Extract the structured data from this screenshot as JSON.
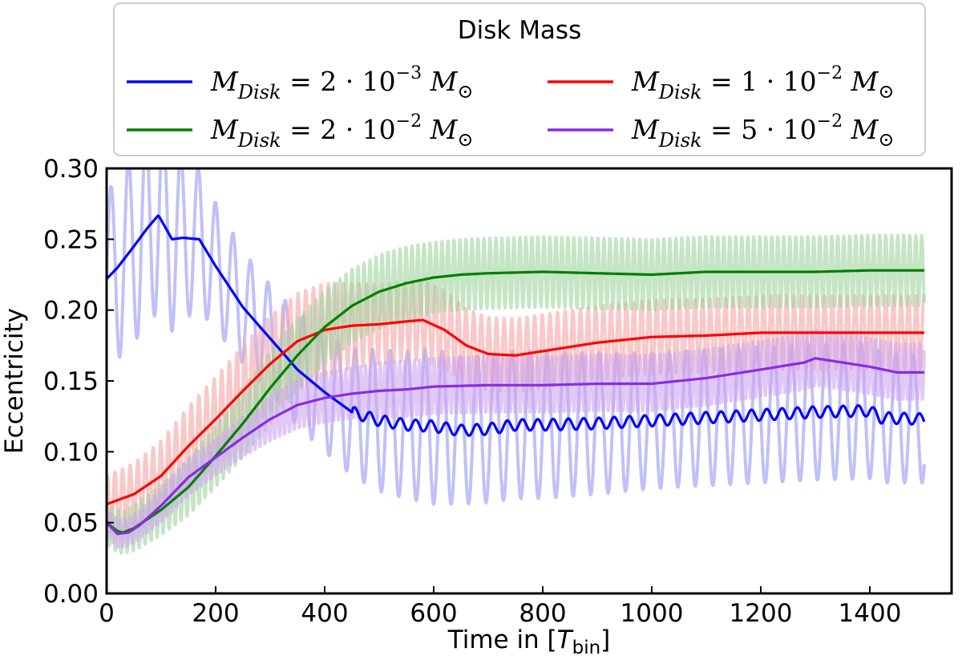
{
  "chart_data": {
    "type": "line",
    "title": "",
    "xlabel_prefix": "Time in [",
    "xlabel_var": "T",
    "xlabel_sub": "bin",
    "xlabel_suffix": "]",
    "ylabel": "Eccentricity",
    "xlim": [
      0,
      1550
    ],
    "ylim": [
      0,
      0.3
    ],
    "xticks": [
      0,
      200,
      400,
      600,
      800,
      1000,
      1200,
      1400
    ],
    "xtick_labels": [
      "0",
      "200",
      "400",
      "600",
      "800",
      "1000",
      "1200",
      "1400"
    ],
    "yticks": [
      0.0,
      0.05,
      0.1,
      0.15,
      0.2,
      0.25,
      0.3
    ],
    "ytick_labels": [
      "0.00",
      "0.05",
      "0.10",
      "0.15",
      "0.20",
      "0.25",
      "0.30"
    ],
    "grid": false,
    "legend": {
      "title": "Disk Mass",
      "placement": "top-center",
      "columns": 2
    },
    "series": [
      {
        "name": "M_Disk = 2·10^-3 M_sun",
        "legend_var": "M",
        "legend_sub": "Disk",
        "legend_coef": "= 2 · 10",
        "legend_exp": "−3",
        "legend_unit": "M",
        "legend_unit_sub": "⊙",
        "color": "#0000ff",
        "band_color": "#8d8df5",
        "band_opacity": 0.55,
        "osc_period": 32,
        "x": [
          0,
          20,
          50,
          75,
          95,
          120,
          140,
          170,
          200,
          250,
          300,
          350,
          400,
          450,
          500,
          550,
          600,
          650,
          700,
          750,
          800,
          900,
          1000,
          1100,
          1200,
          1300,
          1400,
          1420,
          1500
        ],
        "y": [
          0.222,
          0.23,
          0.245,
          0.258,
          0.267,
          0.25,
          0.251,
          0.25,
          0.231,
          0.202,
          0.18,
          0.158,
          0.142,
          0.128,
          0.122,
          0.119,
          0.118,
          0.115,
          0.116,
          0.119,
          0.119,
          0.12,
          0.122,
          0.124,
          0.126,
          0.128,
          0.129,
          0.124,
          0.123
        ],
        "band_half": [
          0.06,
          0.065,
          0.068,
          0.068,
          0.068,
          0.065,
          0.058,
          0.05,
          0.045,
          0.04,
          0.038,
          0.04,
          0.042,
          0.045,
          0.05,
          0.052,
          0.055,
          0.052,
          0.052,
          0.052,
          0.052,
          0.05,
          0.048,
          0.048,
          0.048,
          0.048,
          0.048,
          0.046,
          0.045
        ]
      },
      {
        "name": "M_Disk = 1·10^-2 M_sun",
        "legend_var": "M",
        "legend_sub": "Disk",
        "legend_coef": "= 1 · 10",
        "legend_exp": "−2",
        "legend_unit": "M",
        "legend_unit_sub": "⊙",
        "color": "#ff0000",
        "band_color": "#f7a3a3",
        "band_opacity": 0.6,
        "osc_period": 14,
        "x": [
          0,
          50,
          100,
          150,
          200,
          250,
          300,
          350,
          400,
          450,
          500,
          550,
          580,
          620,
          660,
          700,
          750,
          800,
          900,
          1000,
          1100,
          1200,
          1300,
          1400,
          1500
        ],
        "y": [
          0.063,
          0.07,
          0.083,
          0.104,
          0.123,
          0.143,
          0.162,
          0.178,
          0.186,
          0.189,
          0.19,
          0.192,
          0.193,
          0.186,
          0.175,
          0.169,
          0.168,
          0.171,
          0.177,
          0.181,
          0.182,
          0.184,
          0.184,
          0.184,
          0.184
        ],
        "band_half": [
          0.02,
          0.022,
          0.025,
          0.028,
          0.03,
          0.032,
          0.034,
          0.034,
          0.033,
          0.03,
          0.028,
          0.028,
          0.028,
          0.028,
          0.026,
          0.026,
          0.026,
          0.026,
          0.026,
          0.026,
          0.026,
          0.026,
          0.026,
          0.026,
          0.026
        ]
      },
      {
        "name": "M_Disk = 2·10^-2 M_sun",
        "legend_var": "M",
        "legend_sub": "Disk",
        "legend_coef": "= 2 · 10",
        "legend_exp": "−2",
        "legend_unit": "M",
        "legend_unit_sub": "⊙",
        "color": "#008000",
        "band_color": "#9fd49f",
        "band_opacity": 0.6,
        "osc_period": 11,
        "x": [
          0,
          20,
          30,
          50,
          100,
          150,
          200,
          250,
          300,
          350,
          400,
          450,
          500,
          550,
          600,
          650,
          700,
          800,
          900,
          1000,
          1100,
          1200,
          1300,
          1400,
          1500
        ],
        "y": [
          0.05,
          0.044,
          0.043,
          0.046,
          0.059,
          0.075,
          0.097,
          0.12,
          0.145,
          0.168,
          0.188,
          0.203,
          0.213,
          0.219,
          0.223,
          0.225,
          0.226,
          0.227,
          0.226,
          0.225,
          0.227,
          0.227,
          0.227,
          0.228,
          0.228
        ],
        "band_half": [
          0.015,
          0.015,
          0.015,
          0.016,
          0.018,
          0.02,
          0.022,
          0.024,
          0.026,
          0.026,
          0.026,
          0.026,
          0.026,
          0.026,
          0.025,
          0.025,
          0.025,
          0.025,
          0.025,
          0.025,
          0.025,
          0.025,
          0.025,
          0.025,
          0.025
        ]
      },
      {
        "name": "M_Disk = 5·10^-2 M_sun",
        "legend_var": "M",
        "legend_sub": "Disk",
        "legend_coef": "= 5 · 10",
        "legend_exp": "−2",
        "legend_unit": "M",
        "legend_unit_sub": "⊙",
        "color": "#8a2be2",
        "band_color": "#cfa5ef",
        "band_opacity": 0.6,
        "osc_period": 9,
        "x": [
          0,
          20,
          40,
          60,
          100,
          150,
          200,
          250,
          300,
          350,
          400,
          450,
          500,
          550,
          600,
          700,
          800,
          900,
          1000,
          1100,
          1200,
          1280,
          1300,
          1350,
          1400,
          1450,
          1500
        ],
        "y": [
          0.05,
          0.042,
          0.043,
          0.048,
          0.062,
          0.082,
          0.096,
          0.11,
          0.123,
          0.133,
          0.138,
          0.141,
          0.143,
          0.144,
          0.146,
          0.147,
          0.147,
          0.148,
          0.148,
          0.152,
          0.158,
          0.163,
          0.166,
          0.163,
          0.16,
          0.156,
          0.156
        ],
        "band_half": [
          0.01,
          0.01,
          0.01,
          0.01,
          0.012,
          0.013,
          0.013,
          0.014,
          0.016,
          0.017,
          0.018,
          0.018,
          0.02,
          0.02,
          0.02,
          0.02,
          0.02,
          0.02,
          0.02,
          0.02,
          0.02,
          0.02,
          0.02,
          0.02,
          0.02,
          0.02,
          0.02
        ]
      }
    ]
  }
}
